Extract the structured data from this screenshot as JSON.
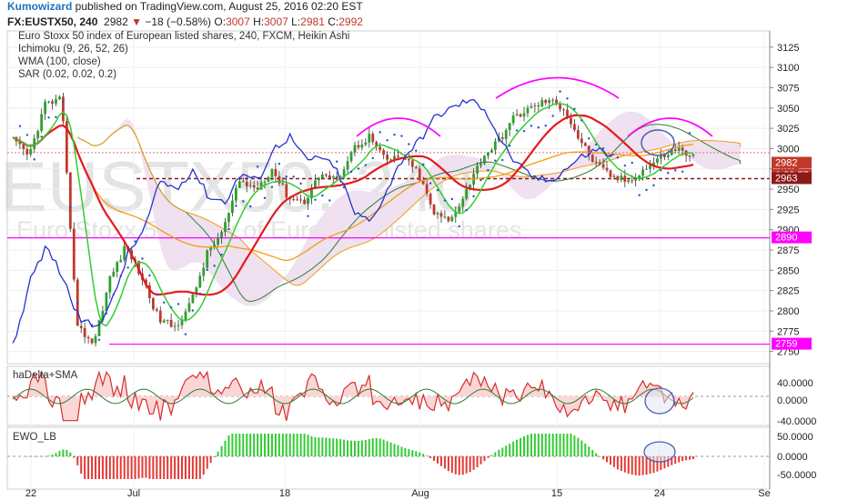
{
  "header": {
    "author": "Kumowizard",
    "published": " published on TradingView.com, August 25, 2016 02:20 EST"
  },
  "symbol": {
    "ticker": "FX:EUSTX50, 240",
    "last": "2982",
    "change": "−18 (−0.58%)",
    "o_label": "O:",
    "o": "3007",
    "h_label": "H:",
    "h": "3007",
    "l_label": "L:",
    "l": "2981",
    "c_label": "C:",
    "c": "2992"
  },
  "indicators": {
    "title": "Euro Stoxx 50 index of European listed shares, 240, FXCM, Heikin Ashi",
    "ichimoku": "Ichimoku (9, 26, 52, 26)",
    "wma": "WMA (100, close)",
    "sar": "SAR (0.02, 0.02, 0.2)"
  },
  "watermark": {
    "big": "EUSTX50, 240",
    "small": "Euro Stoxx 50 index of European listed shares"
  },
  "panes": {
    "hadelta": "haDelta+SMA",
    "ewo": "EWO_LB"
  },
  "colors": {
    "up_candle": "#2ca02c",
    "down_candle": "#c0392b",
    "kijun": "#e31a1c",
    "tenkan": "#33cc33",
    "chikou": "#2233cc",
    "wma": "#f39c12",
    "sar": "#1f4fd1",
    "cloud": "#efe1f0",
    "magenta": "#ff00ff",
    "dash": "#8b1a1a"
  },
  "chart_data": [
    {
      "type": "candlestick",
      "title": "Euro Stoxx 50 index of European listed shares, 240, FXCM, Heikin Ashi",
      "y_ticks": [
        3125,
        3100,
        3075,
        3050,
        3025,
        3000,
        2975,
        2950,
        2925,
        2900,
        2875,
        2850,
        2825,
        2800,
        2775,
        2750
      ],
      "ylim": [
        2735,
        3145
      ],
      "x_ticks": [
        "22",
        "Jul",
        "18",
        "Aug",
        "15",
        "24",
        "Se"
      ],
      "price_tags": [
        {
          "label": "2982",
          "value": 2982,
          "color": "#c0392b"
        },
        {
          "label": "1:39:57",
          "value": 2967,
          "color": "#c0392b"
        },
        {
          "label": "2963",
          "value": 2963,
          "color": "#8b1a1a"
        },
        {
          "label": "2890",
          "value": 2890,
          "color": "#ff00ff"
        },
        {
          "label": "2759",
          "value": 2759,
          "color": "#ff00ff"
        }
      ],
      "horizontal_lines": [
        2963,
        2890,
        2759
      ],
      "close_path": [
        3010,
        2990,
        3055,
        3060,
        2780,
        2760,
        2840,
        2880,
        2840,
        2790,
        2780,
        2810,
        2870,
        2900,
        2960,
        2950,
        2975,
        2940,
        2935,
        2970,
        2960,
        3000,
        3015,
        2985,
        2990,
        2970,
        2920,
        2910,
        2950,
        2990,
        3010,
        3040,
        3050,
        3060,
        3050,
        3010,
        2980,
        2965,
        2960,
        2975,
        2990,
        3000,
        2990
      ]
    },
    {
      "type": "line",
      "name": "haDelta+SMA",
      "y_ticks": [
        "40.0000",
        "0.0000",
        "-40.0000"
      ],
      "ylim": [
        -45,
        45
      ]
    },
    {
      "type": "bar",
      "name": "EWO_LB",
      "y_ticks": [
        "50.0000",
        "0.0000",
        "-50.0000"
      ],
      "ylim": [
        -60,
        60
      ]
    }
  ]
}
